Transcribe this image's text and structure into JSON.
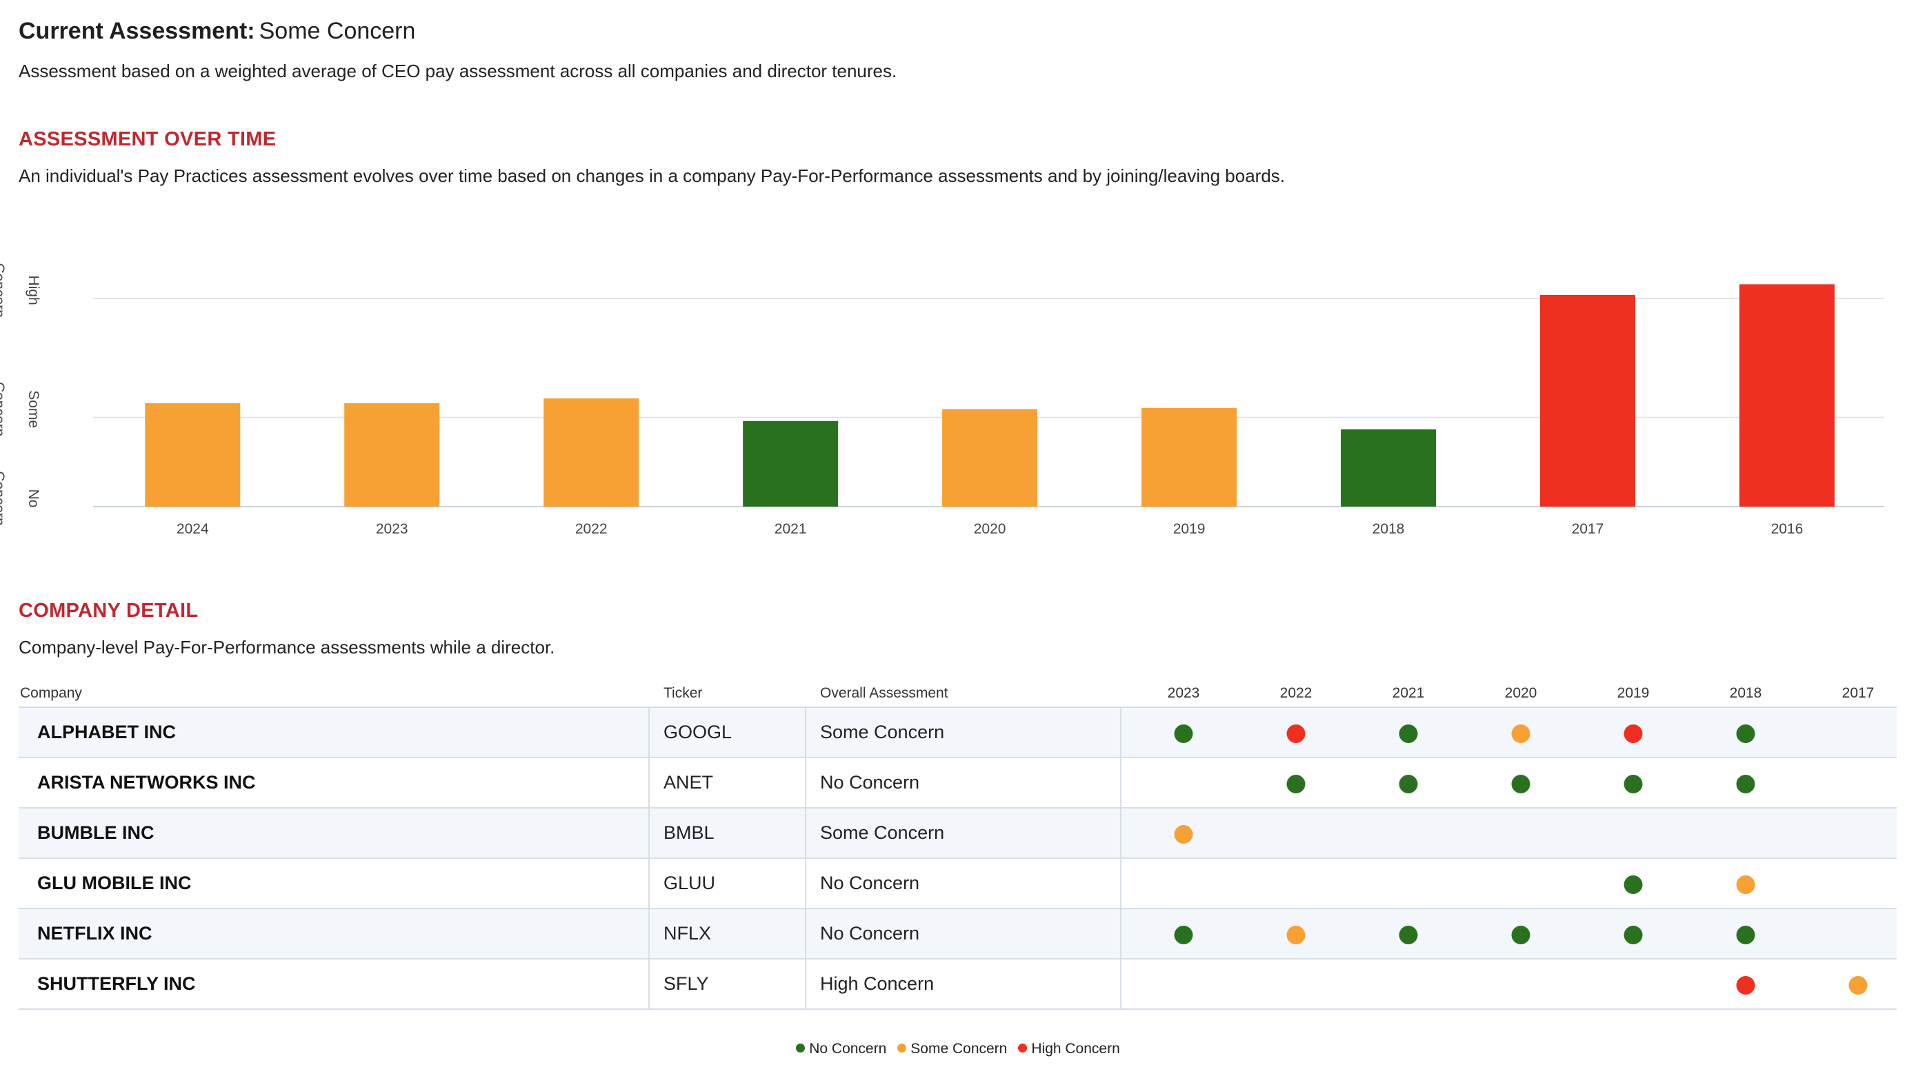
{
  "header": {
    "label": "Current Assessment:",
    "value": "Some Concern",
    "description": "Assessment based on a weighted average of CEO pay assessment across all companies and director tenures."
  },
  "over_time": {
    "title": "ASSESSMENT OVER TIME",
    "description": "An individual's Pay Practices assessment evolves over time based on changes in a company Pay-For-Performance assessments and by joining/leaving boards."
  },
  "chart_data": {
    "type": "bar",
    "categories": [
      "2024",
      "2023",
      "2022",
      "2021",
      "2020",
      "2019",
      "2018",
      "2017",
      "2016"
    ],
    "values": [
      0.87,
      0.87,
      0.91,
      0.72,
      0.82,
      0.83,
      0.65,
      1.78,
      1.87
    ],
    "colors": [
      "#f7a034",
      "#f7a034",
      "#f7a034",
      "#2a711f",
      "#f7a034",
      "#f7a034",
      "#2a711f",
      "#ef2f1f",
      "#ef2f1f"
    ],
    "y_tick_labels": [
      {
        "value": 0,
        "lines": [
          "No",
          "Concern"
        ]
      },
      {
        "value": 0.75,
        "lines": [
          "Some",
          "Concern"
        ]
      },
      {
        "value": 1.75,
        "lines": [
          "High",
          "Concern"
        ]
      }
    ],
    "ylim": [
      0,
      2
    ],
    "grid": true,
    "title": "",
    "xlabel": "",
    "ylabel": ""
  },
  "company_detail": {
    "title": "COMPANY DETAIL",
    "description": "Company-level Pay-For-Performance assessments while a director.",
    "columns": {
      "company": "Company",
      "ticker": "Ticker",
      "overall": "Overall Assessment",
      "years": [
        "2023",
        "2022",
        "2021",
        "2020",
        "2019",
        "2018",
        "2017"
      ]
    },
    "rows": [
      {
        "company": "ALPHABET INC",
        "ticker": "GOOGL",
        "overall": "Some Concern",
        "years": [
          "No Concern",
          "High Concern",
          "No Concern",
          "Some Concern",
          "High Concern",
          "No Concern",
          ""
        ]
      },
      {
        "company": "ARISTA NETWORKS INC",
        "ticker": "ANET",
        "overall": "No Concern",
        "years": [
          "",
          "No Concern",
          "No Concern",
          "No Concern",
          "No Concern",
          "No Concern",
          ""
        ]
      },
      {
        "company": "BUMBLE INC",
        "ticker": "BMBL",
        "overall": "Some Concern",
        "years": [
          "Some Concern",
          "",
          "",
          "",
          "",
          "",
          ""
        ]
      },
      {
        "company": "GLU MOBILE INC",
        "ticker": "GLUU",
        "overall": "No Concern",
        "years": [
          "",
          "",
          "",
          "",
          "No Concern",
          "Some Concern",
          ""
        ]
      },
      {
        "company": "NETFLIX INC",
        "ticker": "NFLX",
        "overall": "No Concern",
        "years": [
          "No Concern",
          "Some Concern",
          "No Concern",
          "No Concern",
          "No Concern",
          "No Concern",
          ""
        ]
      },
      {
        "company": "SHUTTERFLY INC",
        "ticker": "SFLY",
        "overall": "High Concern",
        "years": [
          "",
          "",
          "",
          "",
          "",
          "High Concern",
          "Some Concern"
        ]
      }
    ]
  },
  "legend": [
    {
      "label": "No Concern",
      "color": "#2a711f"
    },
    {
      "label": "Some Concern",
      "color": "#f7a034"
    },
    {
      "label": "High Concern",
      "color": "#ef2f1f"
    }
  ]
}
